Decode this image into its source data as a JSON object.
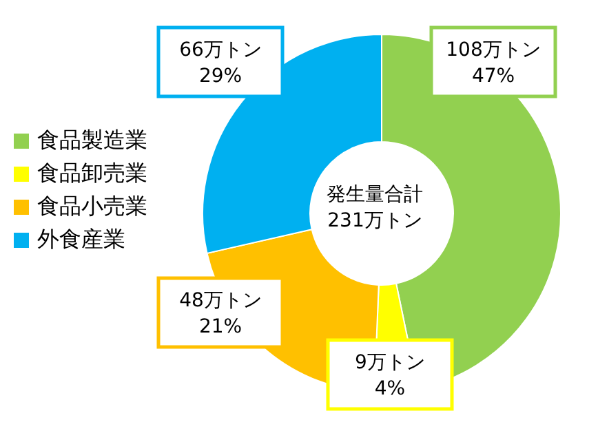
{
  "chart_data": {
    "type": "donut",
    "categories": [
      "食品製造業",
      "食品卸売業",
      "食品小売業",
      "外食産業"
    ],
    "values": [
      108,
      9,
      48,
      66
    ],
    "colors": [
      "#92d050",
      "#ffff00",
      "#ffc000",
      "#00b0f0"
    ],
    "value_labels": [
      "108万トン\n47%",
      "9万トン\n4%",
      "48万トン\n21%",
      "66万トン\n29%"
    ],
    "annotations": [
      "発生量合計\n231万トン"
    ],
    "legend": "left"
  }
}
